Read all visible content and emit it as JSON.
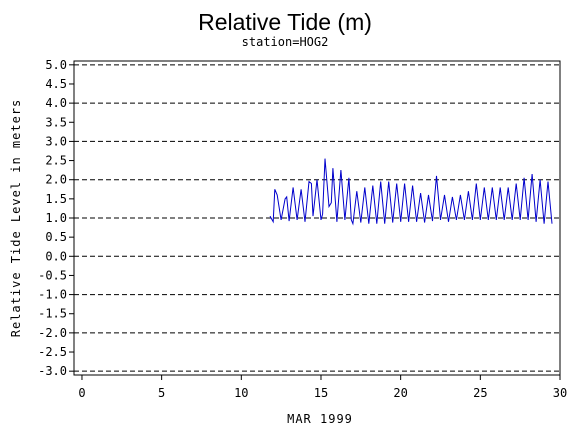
{
  "chart_data": {
    "type": "line",
    "title": "Relative Tide (m)",
    "subtitle": "station=HOG2",
    "xlabel": "MAR 1999",
    "ylabel": "Relative Tide Level in meters",
    "xlim": [
      -0.5,
      30
    ],
    "ylim": [
      -3.1,
      5.1
    ],
    "x_ticks": [
      0,
      5,
      10,
      15,
      20,
      25,
      30
    ],
    "x_tick_labels": [
      "0",
      "5",
      "10",
      "15",
      "20",
      "25",
      "30"
    ],
    "y_ticks": [
      5.0,
      4.5,
      4.0,
      3.5,
      3.0,
      2.5,
      2.0,
      1.5,
      1.0,
      0.5,
      0.0,
      -0.5,
      -1.0,
      -1.5,
      -2.0,
      -2.5,
      -3.0
    ],
    "y_tick_labels": [
      "5.0",
      "4.5",
      "4.0",
      "3.5",
      "3.0",
      "2.5",
      "2.0",
      "1.5",
      "1.0",
      "0.5",
      "0.0",
      "-0.5",
      "-1.0",
      "-1.5",
      "-2.0",
      "-2.5",
      "-3.0"
    ],
    "grid_y_dashed": [
      5.0,
      4.0,
      3.0,
      2.0,
      1.0,
      0.0,
      -1.0,
      -2.0,
      -3.0
    ],
    "series_color": "#0000cc",
    "series": [
      {
        "x": [
          11.8,
          12.0,
          12.1,
          12.25,
          12.5,
          12.75,
          12.85,
          13.0,
          13.25,
          13.5,
          13.75,
          14.0,
          14.25,
          14.4,
          14.5,
          14.75,
          15.0,
          15.1,
          15.25,
          15.5,
          15.65,
          15.75,
          16.0,
          16.25,
          16.5,
          16.75,
          16.9,
          17.0,
          17.25,
          17.5,
          17.75,
          18.0,
          18.25,
          18.5,
          18.75,
          19.0,
          19.25,
          19.5,
          19.75,
          20.0,
          20.25,
          20.5,
          20.75,
          21.0,
          21.25,
          21.5,
          21.75,
          22.0,
          22.25,
          22.5,
          22.75,
          23.0,
          23.25,
          23.5,
          23.75,
          24.0,
          24.25,
          24.5,
          24.75,
          25.0,
          25.25,
          25.5,
          25.75,
          26.0,
          26.25,
          26.5,
          26.75,
          27.0,
          27.25,
          27.5,
          27.75,
          28.0,
          28.25,
          28.5,
          28.75,
          29.0,
          29.25,
          29.5
        ],
        "y": [
          1.05,
          0.9,
          1.75,
          1.6,
          0.95,
          1.5,
          1.55,
          0.92,
          1.8,
          0.95,
          1.75,
          0.9,
          1.95,
          1.9,
          1.05,
          2.0,
          0.95,
          1.1,
          2.55,
          1.3,
          1.4,
          2.3,
          0.9,
          2.25,
          0.95,
          2.05,
          0.95,
          0.85,
          1.7,
          0.88,
          1.8,
          0.85,
          1.85,
          0.85,
          1.95,
          0.85,
          1.95,
          0.88,
          1.9,
          0.9,
          1.9,
          0.9,
          1.85,
          0.9,
          1.65,
          0.88,
          1.6,
          0.92,
          2.1,
          0.95,
          1.6,
          0.9,
          1.55,
          0.95,
          1.6,
          0.95,
          1.7,
          0.95,
          1.9,
          0.95,
          1.8,
          0.95,
          1.8,
          0.95,
          1.8,
          0.95,
          1.8,
          0.95,
          1.9,
          0.95,
          2.05,
          0.95,
          2.15,
          0.9,
          2.0,
          0.85,
          1.95,
          0.85
        ]
      }
    ]
  }
}
